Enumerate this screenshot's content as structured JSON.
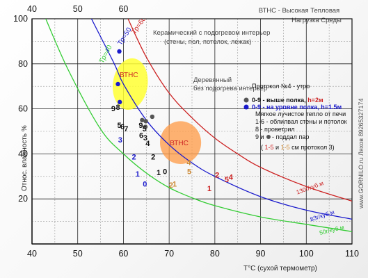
{
  "chart_data": {
    "type": "line",
    "title": "ВТНС - Высокая  Тепловая",
    "subtitle": "Нагрузка Среды",
    "xlabel": "T°C (сухой термометр)",
    "ylabel": "Относ. влажность %",
    "xlim": [
      40,
      110
    ],
    "ylim": [
      0,
      100
    ],
    "x_ticks": [
      "40",
      "50",
      "60",
      "70",
      "80",
      "90",
      "100",
      "110"
    ],
    "y_ticks": [
      "20",
      "40",
      "60",
      "80",
      "100"
    ],
    "top_ticks": [
      "40",
      "50",
      "60"
    ],
    "grid": true,
    "side_note": "www.GORNILO.ru Ляхов 89265327174",
    "series": [
      {
        "label": "Тр=40",
        "color": "#33cc33",
        "curve_label": "50г/куб.м",
        "x": [
          43,
          48,
          55,
          60,
          65,
          70,
          75,
          80,
          90,
          100,
          110
        ],
        "y": [
          100,
          77,
          51,
          40,
          31.5,
          25,
          20.5,
          17,
          12,
          8.7,
          5.5
        ]
      },
      {
        "label": "Тр=50",
        "color": "#1a1acc",
        "curve_label": "83г/куб.м",
        "x": [
          53,
          58,
          60,
          65,
          70,
          75,
          80,
          90,
          100,
          110
        ],
        "y": [
          100,
          80,
          71,
          55,
          44,
          36,
          30,
          21,
          15,
          11
        ]
      },
      {
        "label": "Тр=60",
        "color": "#cc2222",
        "curve_label": "130г/куб.м",
        "x": [
          61,
          65,
          70,
          75,
          80,
          85,
          90,
          100,
          110
        ],
        "y": [
          100,
          83,
          67,
          56,
          47,
          40,
          34,
          25.5,
          19
        ]
      }
    ],
    "zones": [
      {
        "label": "ВТНС",
        "color": "#ffff33",
        "cx": 61.5,
        "cy": 71,
        "rx": 3.8,
        "ry": 11.5,
        "note": "Керамический с подогревом интерьер (стены, пол, потолок, лежак)"
      },
      {
        "label": "ВТНС",
        "color": "#ff9944",
        "cx": 72.5,
        "cy": 45,
        "rx": 4.5,
        "ry": 9.5,
        "note": "Деревянный без подогрева интерьер"
      }
    ],
    "points_upper": [
      {
        "x": 64.1,
        "y": 55
      },
      {
        "x": 64.8,
        "y": 52
      },
      {
        "x": 64.9,
        "y": 54.5
      },
      {
        "x": 66.3,
        "y": 56.5
      }
    ],
    "points_lower": [
      {
        "x": 59.1,
        "y": 85.5
      },
      {
        "x": 58.8,
        "y": 71
      },
      {
        "x": 59.2,
        "y": 63
      }
    ],
    "labels": [
      {
        "t": "9",
        "x": 57.8,
        "y": 59,
        "c": "#111"
      },
      {
        "t": "8",
        "x": 58.8,
        "y": 59.5,
        "c": "#111"
      },
      {
        "t": "5",
        "x": 59.1,
        "y": 51.5,
        "c": "#111"
      },
      {
        "t": "6",
        "x": 59.8,
        "y": 51,
        "c": "#111"
      },
      {
        "t": "7",
        "x": 60.6,
        "y": 50,
        "c": "#111"
      },
      {
        "t": "3",
        "x": 59.3,
        "y": 45,
        "c": "#1a1acc"
      },
      {
        "t": "9",
        "x": 63.8,
        "y": 51.5,
        "c": "#111"
      },
      {
        "t": "5",
        "x": 64.6,
        "y": 50,
        "c": "#111"
      },
      {
        "t": "6",
        "x": 63.9,
        "y": 47,
        "c": "#111"
      },
      {
        "t": "3",
        "x": 64.8,
        "y": 46,
        "c": "#111"
      },
      {
        "t": "4",
        "x": 65.3,
        "y": 43.5,
        "c": "#111"
      },
      {
        "t": "2",
        "x": 62.3,
        "y": 37.5,
        "c": "#1a1acc"
      },
      {
        "t": "2",
        "x": 66.5,
        "y": 37.5,
        "c": "#111"
      },
      {
        "t": "1",
        "x": 63.1,
        "y": 30,
        "c": "#1a1acc"
      },
      {
        "t": "1",
        "x": 67.7,
        "y": 30.5,
        "c": "#111"
      },
      {
        "t": "0",
        "x": 69.1,
        "y": 31,
        "c": "#111"
      },
      {
        "t": "0",
        "x": 64.7,
        "y": 25.5,
        "c": "#1a1acc"
      },
      {
        "t": "4",
        "x": 74.3,
        "y": 35,
        "c": "#cc8833"
      },
      {
        "t": "5",
        "x": 74.4,
        "y": 31,
        "c": "#cc8833"
      },
      {
        "t": "2",
        "x": 70.4,
        "y": 25,
        "c": "#cc8833"
      },
      {
        "t": "1",
        "x": 71.2,
        "y": 25.5,
        "c": "#cc8833"
      },
      {
        "t": "2",
        "x": 80.5,
        "y": 29.5,
        "c": "#cc2222"
      },
      {
        "t": "5",
        "x": 82.6,
        "y": 27.5,
        "c": "#cc2222"
      },
      {
        "t": "4",
        "x": 83.5,
        "y": 28.5,
        "c": "#cc2222"
      },
      {
        "t": "1",
        "x": 78.8,
        "y": 23.5,
        "c": "#cc2222"
      }
    ],
    "legend": {
      "title": "Протокол №4 - утро",
      "upper": "0-9 - выше полка,",
      "upper_h": "h=2м",
      "lower": "0-9 - на уровне полка, h=1.5м",
      "notes": [
        "Мягкое лучистое тепло от печи",
        "1-6 - облилвал стены и потолок",
        "8 - проветрил",
        "9 и",
        "- поддал пар"
      ],
      "protocol_open": "(",
      "p_a": "1-5",
      "p_and": "и",
      "p_b": "1-5",
      "protocol_close": "см протокол 3)"
    },
    "colors": {
      "upper_point": "#555555",
      "lower_point": "#1a1acc",
      "legend_lower": "#1a1acc",
      "legend_h": "#cc2222",
      "p_a": "#cc2222",
      "p_b": "#cc8833"
    }
  }
}
